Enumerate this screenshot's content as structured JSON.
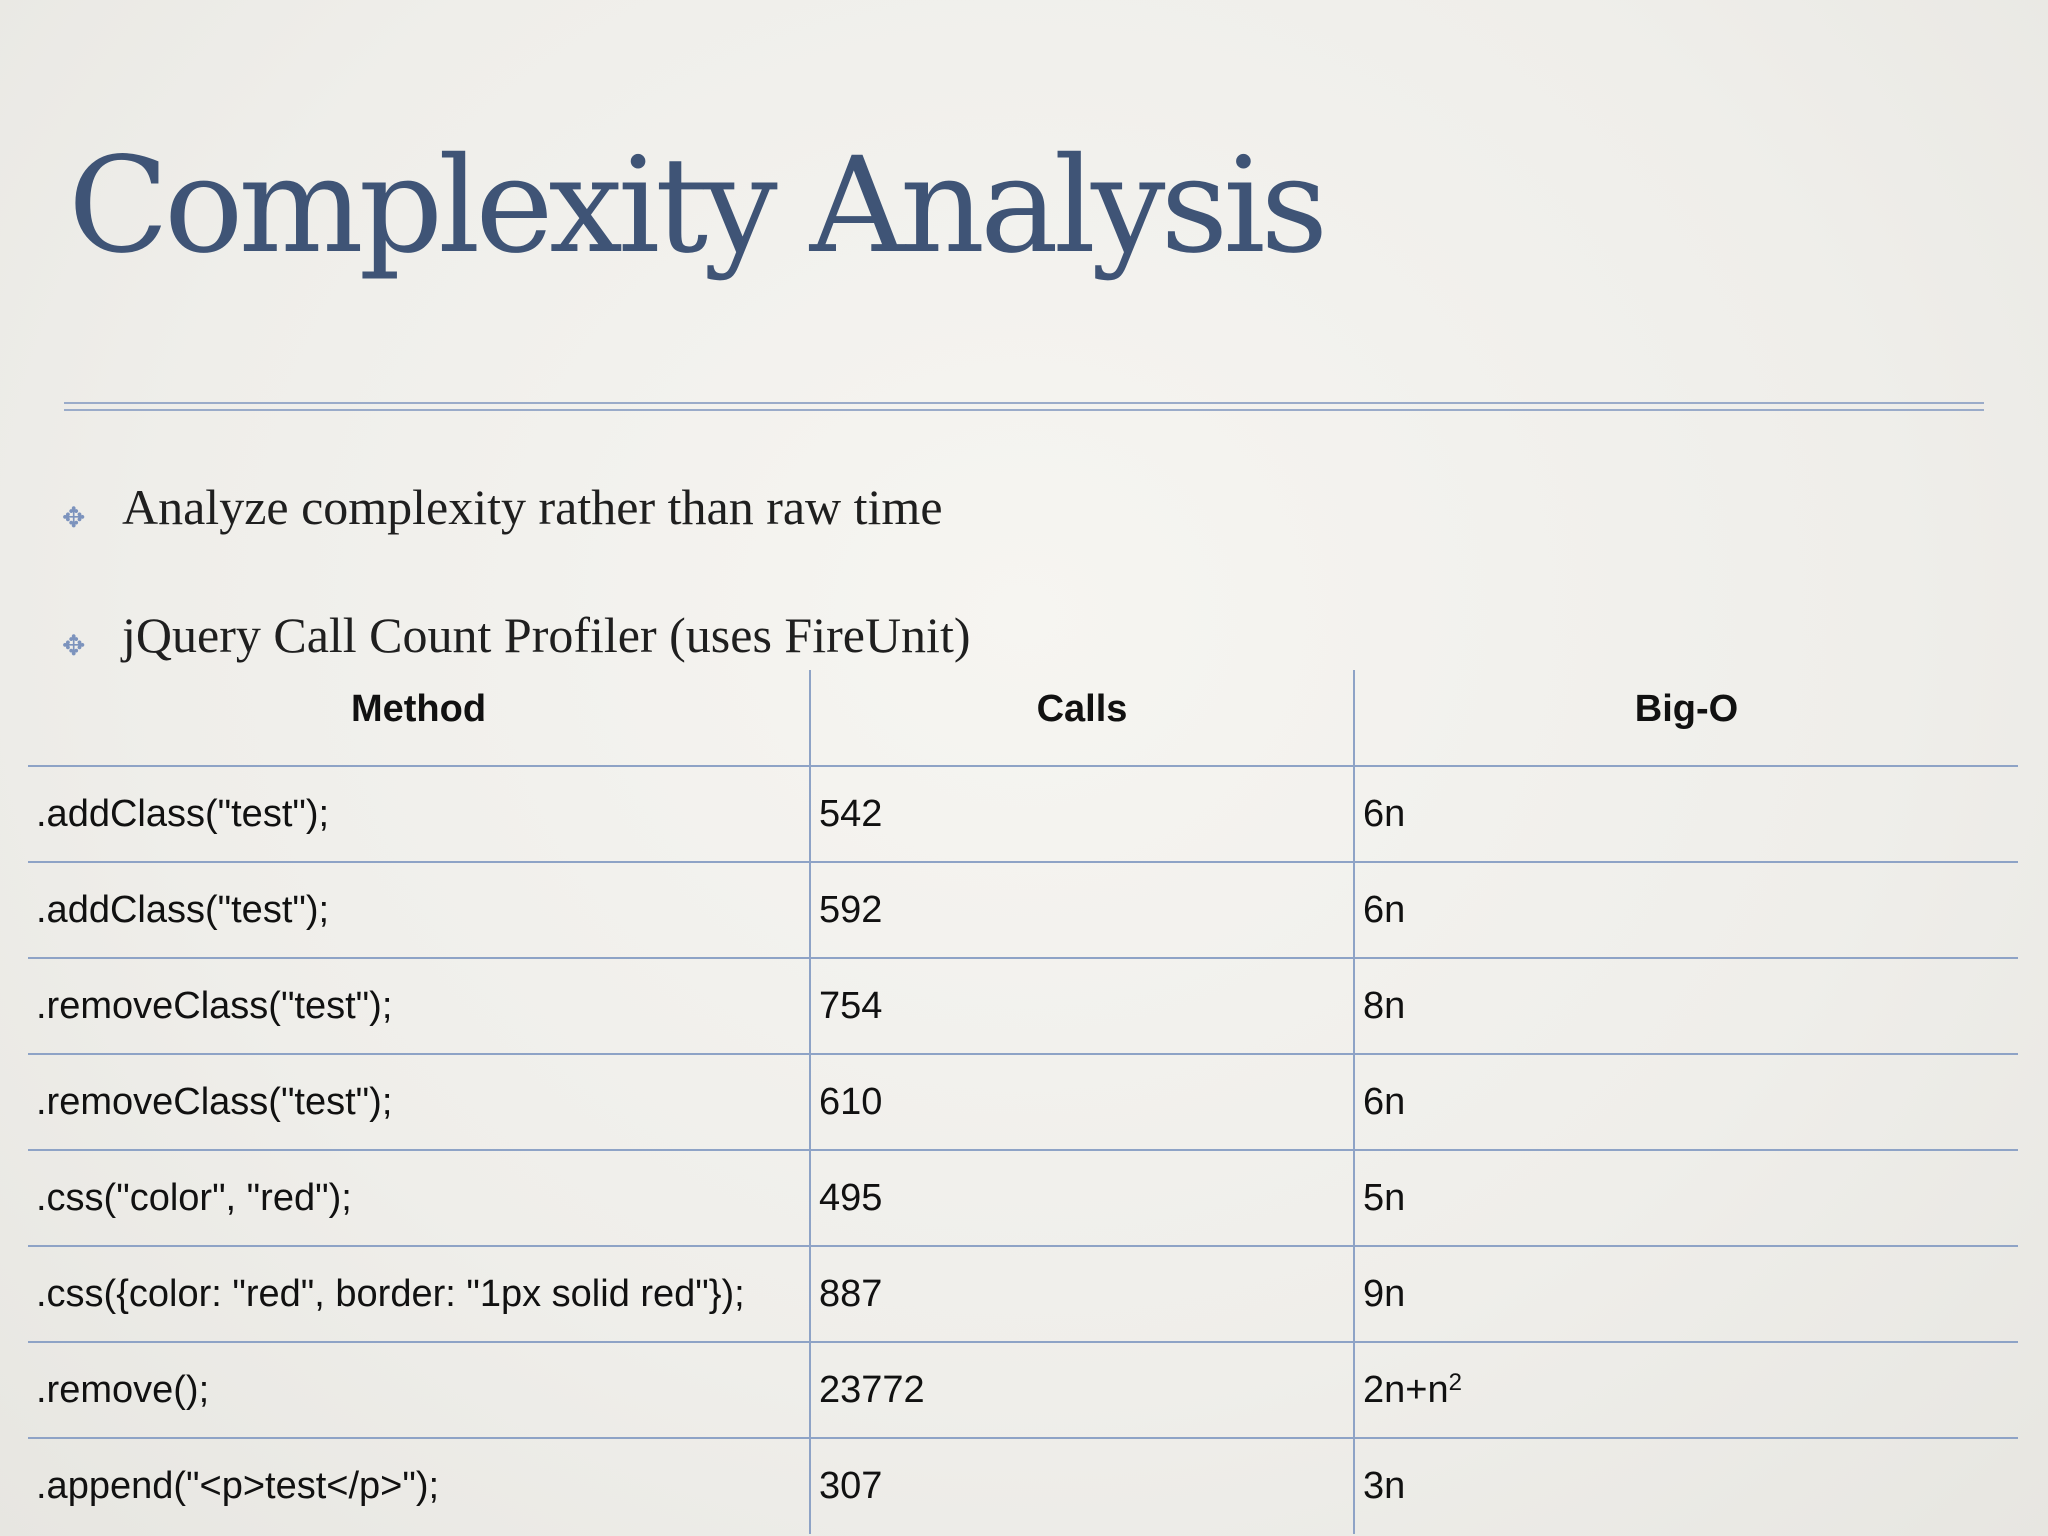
{
  "slide": {
    "title": "Complexity Analysis",
    "bullets": [
      {
        "text": "Analyze complexity rather than raw time"
      },
      {
        "text": "jQuery Call Count Profiler (uses FireUnit)"
      }
    ]
  },
  "table": {
    "headers": [
      "Method",
      "Calls",
      "Big-O"
    ],
    "rows": [
      {
        "method": ".addClass(\"test\");",
        "calls": "542",
        "big_o": "6n"
      },
      {
        "method": ".addClass(\"test\");",
        "calls": "592",
        "big_o": "6n"
      },
      {
        "method": ".removeClass(\"test\");",
        "calls": "754",
        "big_o": "8n"
      },
      {
        "method": ".removeClass(\"test\");",
        "calls": "610",
        "big_o": "6n"
      },
      {
        "method": ".css(\"color\", \"red\");",
        "calls": "495",
        "big_o": "5n"
      },
      {
        "method": ".css({color: \"red\", border: \"1px solid red\"});",
        "calls": "887",
        "big_o": "9n"
      },
      {
        "method": ".remove();",
        "calls": "23772",
        "big_o": "2n+n",
        "big_o_exponent": "2"
      },
      {
        "method": ".append(\"<p>test</p>\");",
        "calls": "307",
        "big_o": "3n"
      }
    ]
  },
  "colors": {
    "title": "#3f5476",
    "rule": "#9aabc9",
    "grid": "#8ea3c6",
    "bullet_mark": "#7c93bd"
  },
  "icons": {
    "bullet": "four-point-star-bullet-icon"
  }
}
